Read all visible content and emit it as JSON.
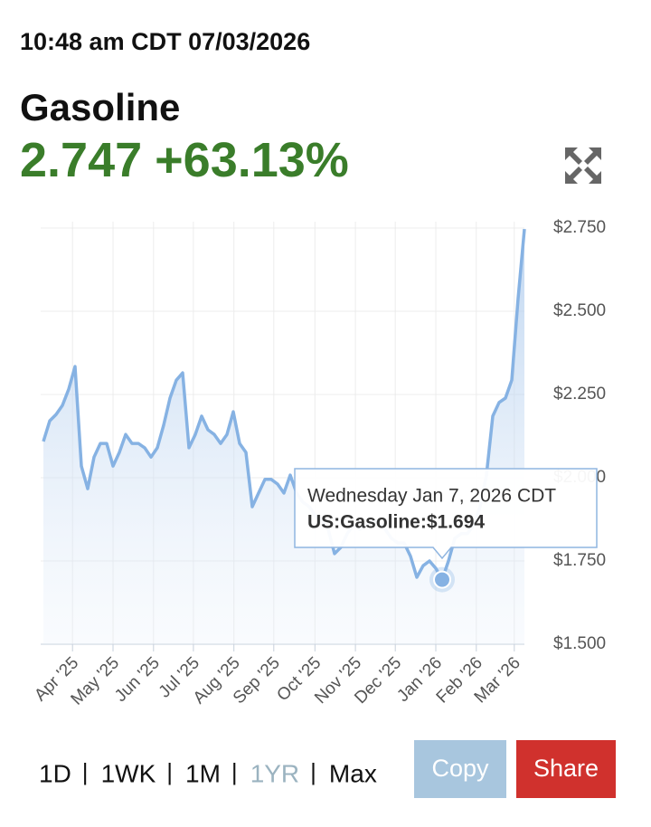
{
  "header": {
    "timestamp": "10:48 am CDT 07/03/2026",
    "title": "Gasoline",
    "price": "2.747",
    "change": "+63.13%"
  },
  "chart_data": {
    "type": "line",
    "series": [
      {
        "color": "#86b2e3",
        "values": [
          2.109,
          2.171,
          2.19,
          2.217,
          2.266,
          2.334,
          2.035,
          1.967,
          2.062,
          2.103,
          2.103,
          2.035,
          2.076,
          2.13,
          2.103,
          2.103,
          2.09,
          2.062,
          2.09,
          2.158,
          2.239,
          2.293,
          2.315,
          2.09,
          2.13,
          2.185,
          2.144,
          2.13,
          2.103,
          2.13,
          2.198,
          2.103,
          2.076,
          1.913,
          1.954,
          1.995,
          1.995,
          1.981,
          1.954,
          2.008,
          1.954,
          1.927,
          1.913,
          1.886,
          1.872,
          1.845,
          1.772,
          1.791,
          1.832,
          1.859,
          1.845,
          1.859,
          1.872,
          1.864,
          1.845,
          1.818,
          1.804,
          1.804,
          1.764,
          1.701,
          1.736,
          1.75,
          1.728,
          1.694,
          1.75,
          1.818,
          1.832,
          1.832,
          1.859,
          1.913,
          2.008,
          2.185,
          2.226,
          2.239,
          2.293,
          2.538,
          2.747
        ]
      }
    ],
    "xlim": [
      0,
      76
    ],
    "xticks": [
      {
        "value": 4.6,
        "label": "Apr '25"
      },
      {
        "value": 11,
        "label": "May '25"
      },
      {
        "value": 17.4,
        "label": "Jun '25"
      },
      {
        "value": 23.7,
        "label": "Jul '25"
      },
      {
        "value": 30.1,
        "label": "Aug '25"
      },
      {
        "value": 36.4,
        "label": "Sep '25"
      },
      {
        "value": 42.9,
        "label": "Oct '25"
      },
      {
        "value": 49.3,
        "label": "Nov '25"
      },
      {
        "value": 55.6,
        "label": "Dec '25"
      },
      {
        "value": 62,
        "label": "Jan '26"
      },
      {
        "value": 68.4,
        "label": "Feb '26"
      },
      {
        "value": 74.4,
        "label": "Mar '26"
      }
    ],
    "ylim": [
      1.5,
      2.75
    ],
    "yticks": [
      {
        "value": 1.5,
        "label": "$1.500"
      },
      {
        "value": 1.75,
        "label": "$1.750"
      },
      {
        "value": 2,
        "label": "$2.000"
      },
      {
        "value": 2.25,
        "label": "$2.250"
      },
      {
        "value": 2.5,
        "label": "$2.500"
      },
      {
        "value": 2.75,
        "label": "$2.750"
      }
    ],
    "grid": true,
    "tooltip": {
      "title": "Wednesday Jan 7, 2026 CDT",
      "label": "US:Gasoline:$1.694",
      "value": 1.694
    }
  },
  "controls": {
    "ranges": [
      "1D",
      "1WK",
      "1M",
      "1YR",
      "Max"
    ],
    "separator": "|",
    "active_range": "1YR",
    "buttons": [
      "Copy",
      "Share"
    ]
  }
}
